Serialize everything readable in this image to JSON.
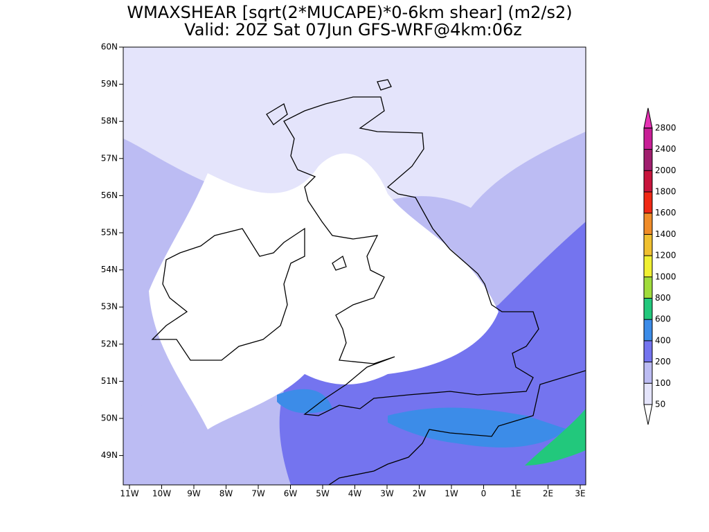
{
  "title": "WMAXSHEAR [sqrt(2*MUCAPE)*0-6km shear] (m2/s2)",
  "subtitle": "Valid: 20Z Sat 07Jun GFS-WRF@4km:06z",
  "map": {
    "lat_labels": [
      "60N",
      "59N",
      "58N",
      "57N",
      "56N",
      "55N",
      "54N",
      "53N",
      "52N",
      "51N",
      "50N",
      "49N"
    ],
    "lon_labels": [
      "11W",
      "10W",
      "9W",
      "8W",
      "7W",
      "6W",
      "5W",
      "4W",
      "3W",
      "2W",
      "1W",
      "0",
      "1E",
      "2E",
      "3E"
    ]
  },
  "colorbar": {
    "levels": [
      50,
      100,
      200,
      400,
      600,
      800,
      1000,
      1200,
      1400,
      1600,
      1800,
      2000,
      2400,
      2800
    ],
    "colors": [
      "#ffffff",
      "#e4e4fb",
      "#bcbcf3",
      "#7474ef",
      "#3c8ce8",
      "#22c87c",
      "#a0dc3c",
      "#f0f032",
      "#f0c030",
      "#f08c28",
      "#f02814",
      "#c8143c",
      "#a01e6e",
      "#c81e96",
      "#e632b4"
    ]
  }
}
